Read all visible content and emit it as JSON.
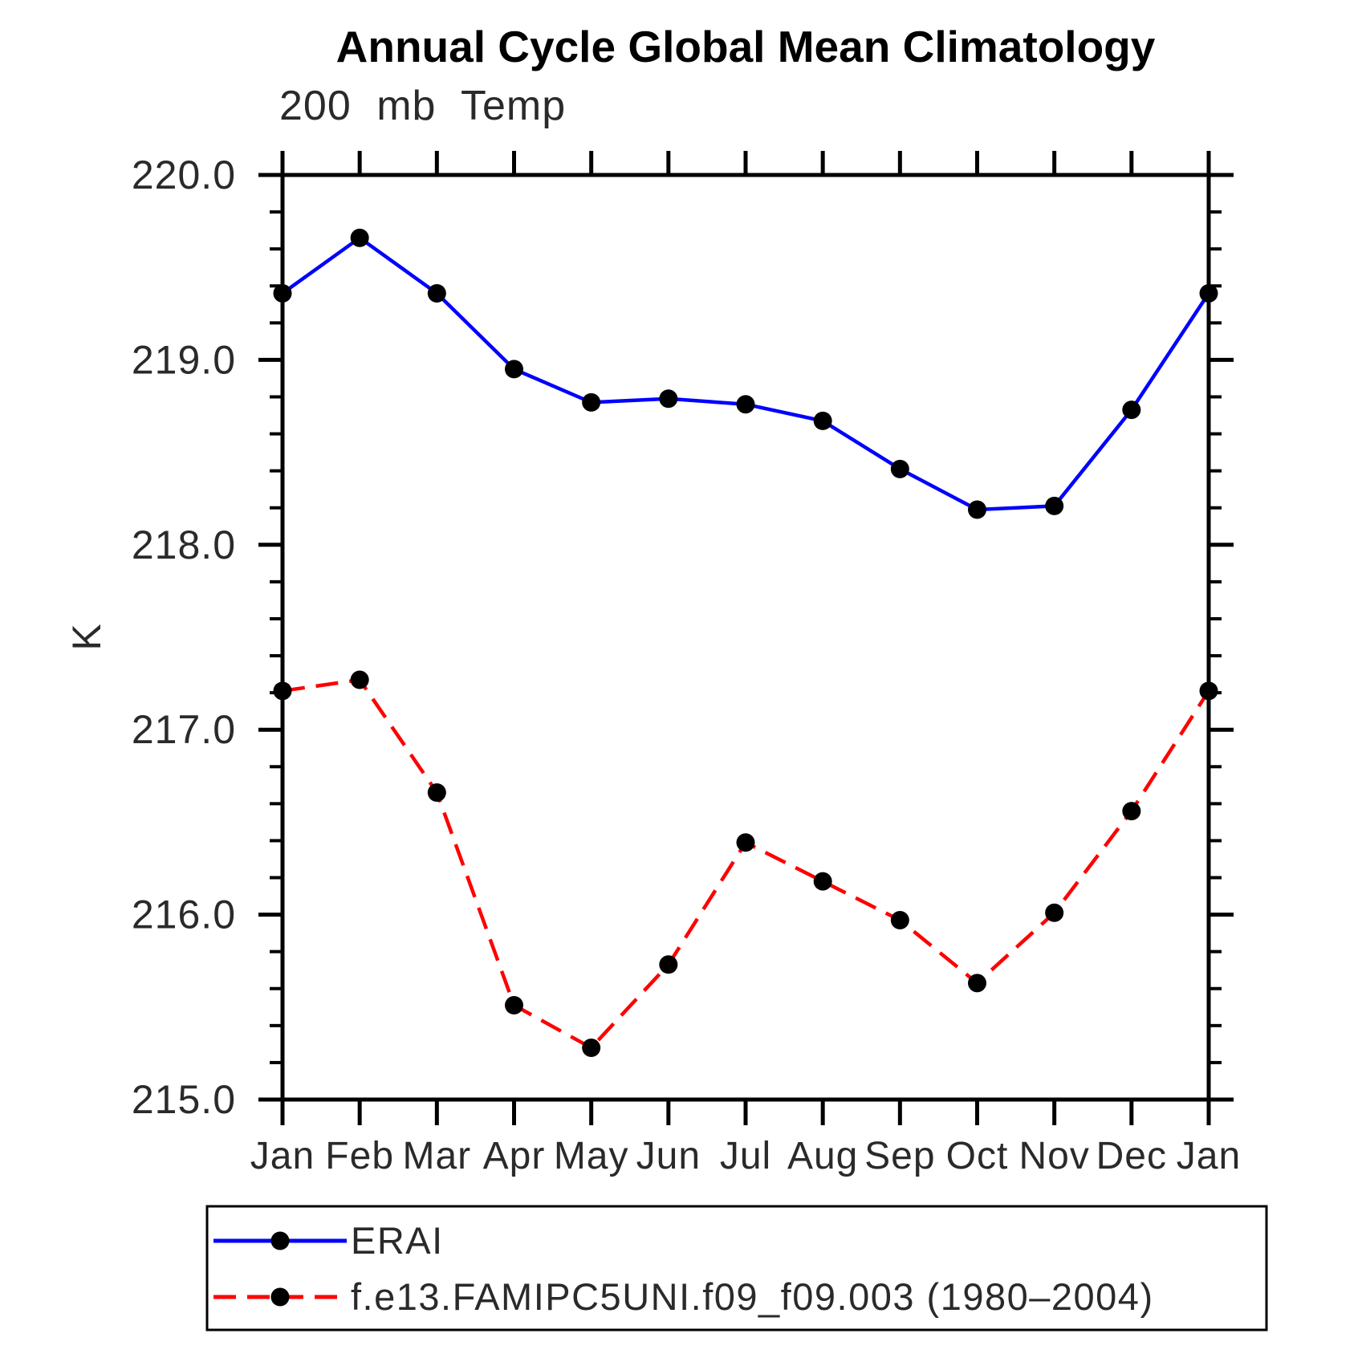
{
  "header": {
    "title": "Annual Cycle Global Mean Climatology",
    "subtitle": "200 mb Temp"
  },
  "chart_data": {
    "type": "line",
    "title": "Annual Cycle Global Mean Climatology",
    "subtitle": "200 mb Temp",
    "xlabel": "",
    "ylabel": "K",
    "ylim": [
      215.0,
      220.0
    ],
    "y_major_tick_labels": [
      "220.0",
      "219.0",
      "218.0",
      "217.0",
      "216.0",
      "215.0"
    ],
    "y_major_step": 1.0,
    "y_minor_step": 0.2,
    "categories": [
      "Jan",
      "Feb",
      "Mar",
      "Apr",
      "May",
      "Jun",
      "Jul",
      "Aug",
      "Sep",
      "Oct",
      "Nov",
      "Dec",
      "Jan"
    ],
    "grid": false,
    "legend_position": "bottom",
    "frame_color": "#000000",
    "series": [
      {
        "name": "ERAI",
        "color": "#0000ff",
        "line_style": "solid",
        "marker": "circle",
        "marker_color": "#000000",
        "values": [
          219.36,
          219.66,
          219.36,
          218.95,
          218.77,
          218.79,
          218.76,
          218.67,
          218.41,
          218.19,
          218.21,
          218.73,
          219.36
        ]
      },
      {
        "name": "f.e13.FAMIPC5UNI.f09_f09.003 (1980–2004)",
        "color": "#ff0000",
        "line_style": "dashed",
        "marker": "circle",
        "marker_color": "#000000",
        "values": [
          217.21,
          217.27,
          216.66,
          215.51,
          215.28,
          215.73,
          216.39,
          216.18,
          215.97,
          215.63,
          216.01,
          216.56,
          217.21
        ]
      }
    ]
  }
}
